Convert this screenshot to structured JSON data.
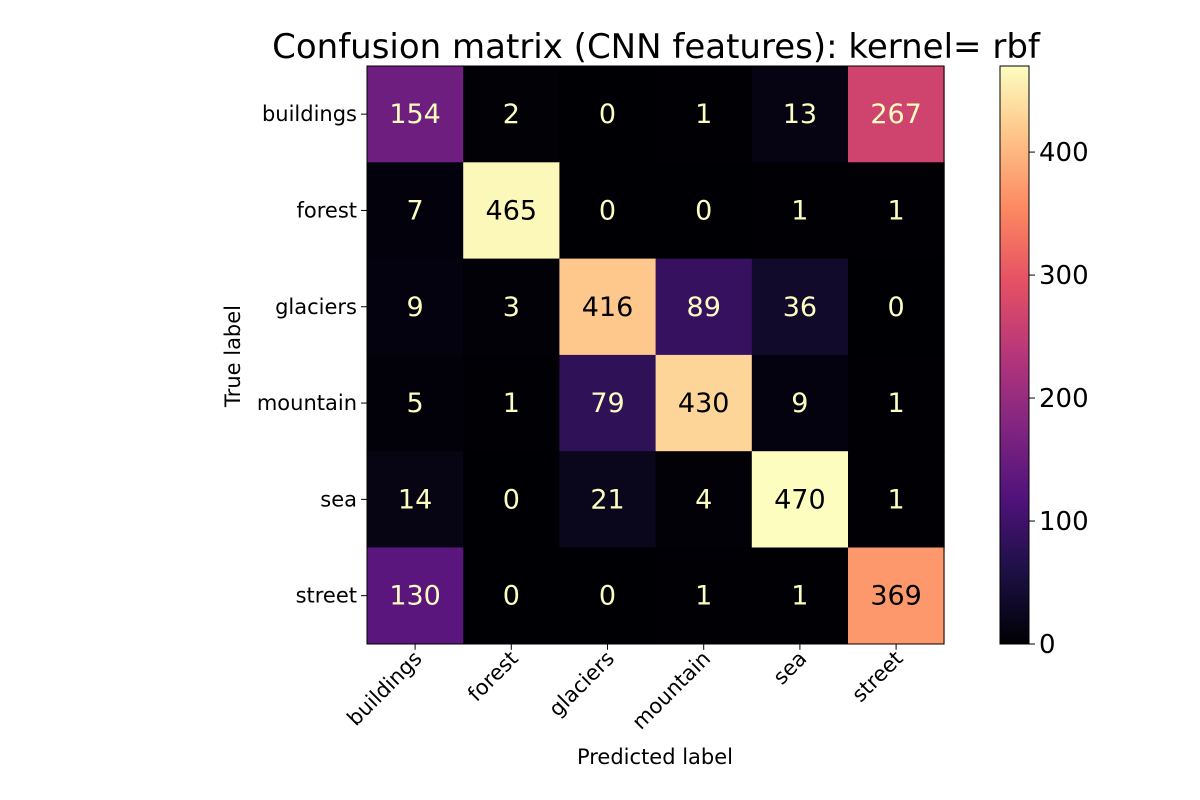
{
  "chart_data": {
    "type": "heatmap",
    "title": "Confusion matrix (CNN features): kernel= rbf",
    "xlabel": "Predicted label",
    "ylabel": "True label",
    "x_categories": [
      "buildings",
      "forest",
      "glaciers",
      "mountain",
      "sea",
      "street"
    ],
    "y_categories": [
      "buildings",
      "forest",
      "glaciers",
      "mountain",
      "sea",
      "street"
    ],
    "values": [
      [
        154,
        2,
        0,
        1,
        13,
        267
      ],
      [
        7,
        465,
        0,
        0,
        1,
        1
      ],
      [
        9,
        3,
        416,
        89,
        36,
        0
      ],
      [
        5,
        1,
        79,
        430,
        9,
        1
      ],
      [
        14,
        0,
        21,
        4,
        470,
        1
      ],
      [
        130,
        0,
        0,
        1,
        1,
        369
      ]
    ],
    "colormap": "magma",
    "colorbar": {
      "min": 0,
      "max": 470,
      "ticks": [
        0,
        100,
        200,
        300,
        400
      ]
    },
    "grid": false
  }
}
